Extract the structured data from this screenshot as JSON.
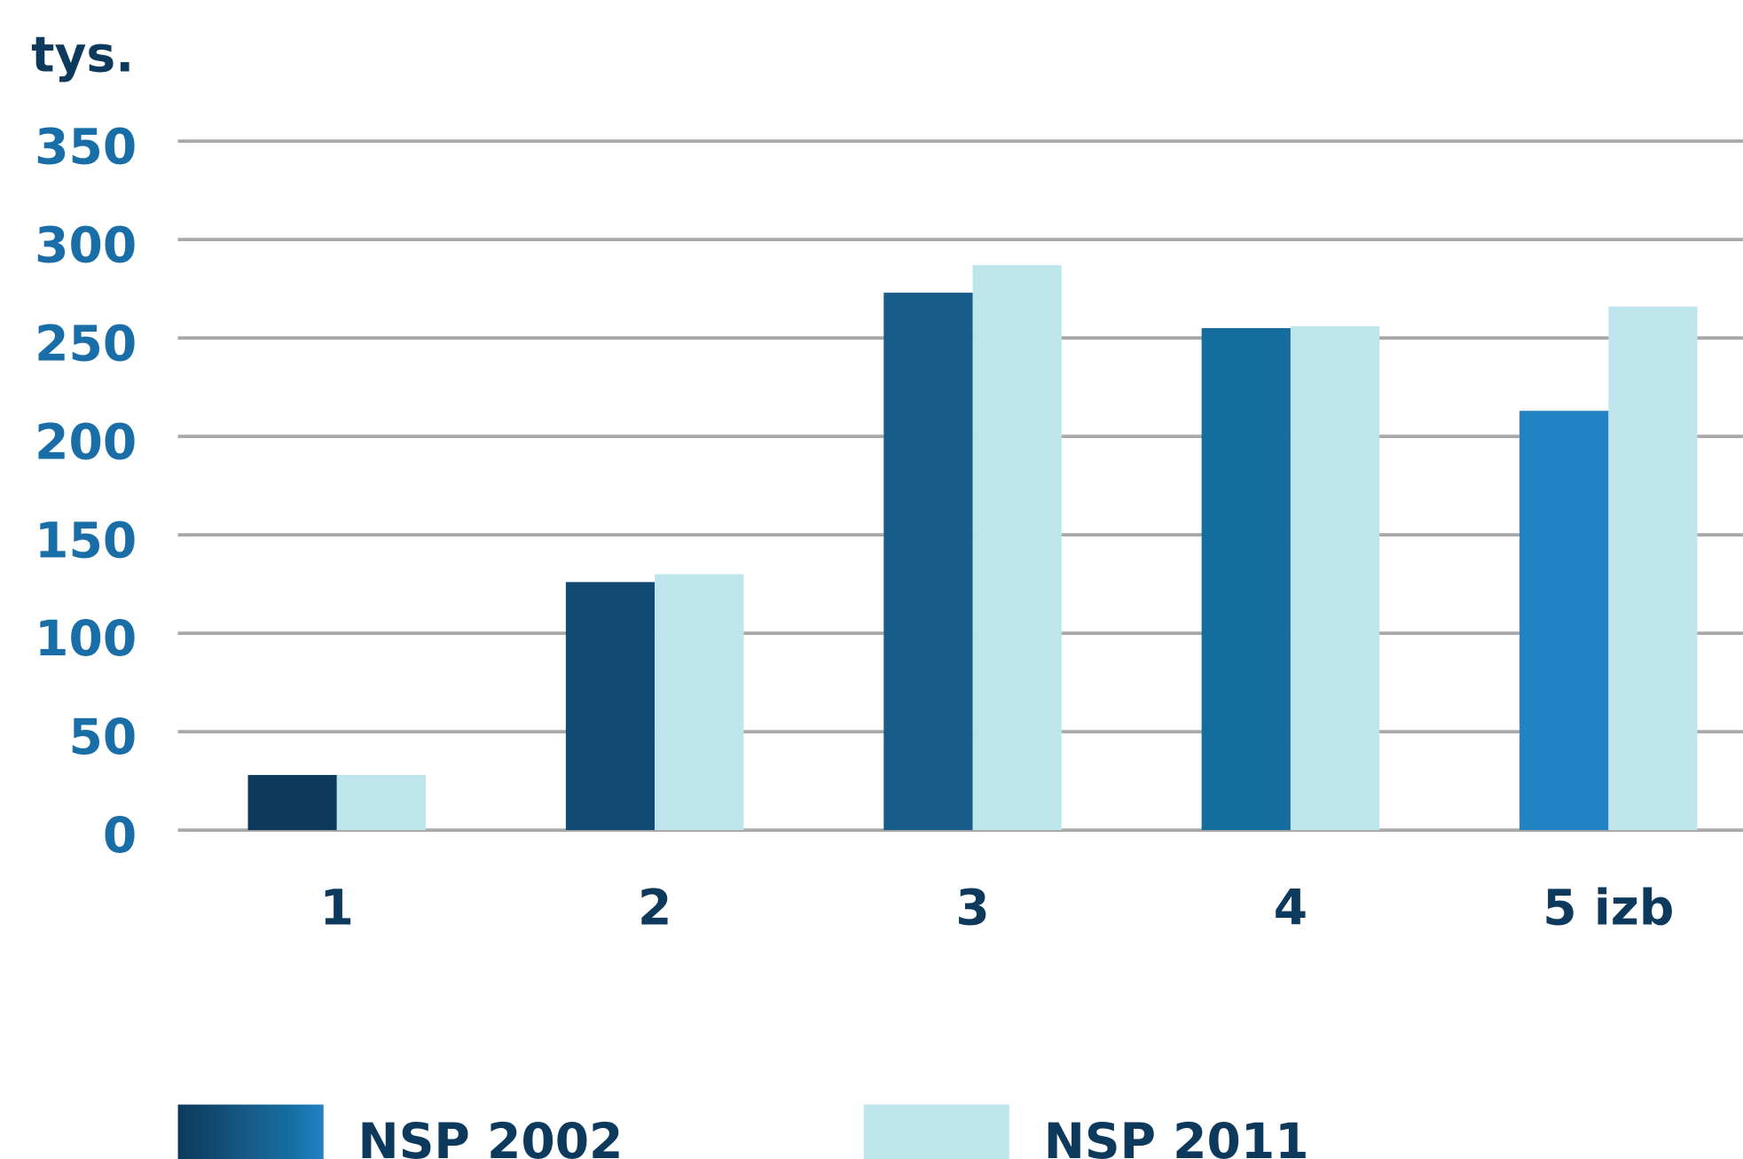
{
  "chart_data": {
    "type": "bar",
    "y_label": "tys.",
    "categories": [
      "1",
      "2",
      "3",
      "4",
      "5 izb"
    ],
    "series": [
      {
        "name": "NSP 2002",
        "colors": [
          "#0d3a5c",
          "#114a72",
          "#185c8a",
          "#146c9f",
          "#2182c4"
        ],
        "values": [
          28,
          126,
          273,
          255,
          213
        ]
      },
      {
        "name": "NSP 2011",
        "color": "#bfe5ec",
        "values": [
          28,
          130,
          287,
          256,
          266
        ]
      }
    ],
    "ylim": [
      0,
      350
    ],
    "yticks": [
      0,
      50,
      100,
      150,
      200,
      250,
      300,
      350
    ],
    "grid": true
  }
}
